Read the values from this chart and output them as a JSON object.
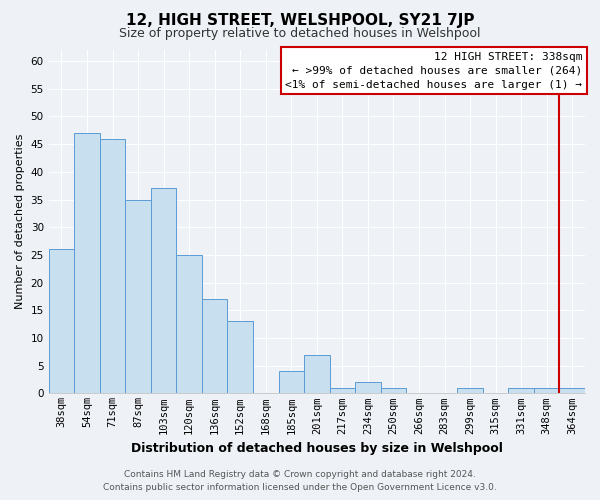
{
  "title": "12, HIGH STREET, WELSHPOOL, SY21 7JP",
  "subtitle": "Size of property relative to detached houses in Welshpool",
  "xlabel": "Distribution of detached houses by size in Welshpool",
  "ylabel": "Number of detached properties",
  "bar_labels": [
    "38sqm",
    "54sqm",
    "71sqm",
    "87sqm",
    "103sqm",
    "120sqm",
    "136sqm",
    "152sqm",
    "168sqm",
    "185sqm",
    "201sqm",
    "217sqm",
    "234sqm",
    "250sqm",
    "266sqm",
    "283sqm",
    "299sqm",
    "315sqm",
    "331sqm",
    "348sqm",
    "364sqm"
  ],
  "bar_values": [
    26,
    47,
    46,
    35,
    37,
    25,
    17,
    13,
    0,
    4,
    7,
    1,
    2,
    1,
    0,
    0,
    1,
    0,
    1,
    1,
    1
  ],
  "bar_color": "#c8dff0",
  "bar_edge_color": "#5b9bd5",
  "vline_x_index": 19,
  "vline_color": "#cc0000",
  "legend_title": "12 HIGH STREET: 338sqm",
  "legend_line1": "← >99% of detached houses are smaller (264)",
  "legend_line2": "<1% of semi-detached houses are larger (1) →",
  "ylim": [
    0,
    62
  ],
  "yticks": [
    0,
    5,
    10,
    15,
    20,
    25,
    30,
    35,
    40,
    45,
    50,
    55,
    60
  ],
  "footer_line1": "Contains HM Land Registry data © Crown copyright and database right 2024.",
  "footer_line2": "Contains public sector information licensed under the Open Government Licence v3.0.",
  "bg_color": "#eef2f7",
  "axes_bg_color": "#eef2f7",
  "grid_color": "#ffffff",
  "title_fontsize": 11,
  "subtitle_fontsize": 9,
  "xlabel_fontsize": 9,
  "ylabel_fontsize": 8,
  "tick_fontsize": 7.5,
  "legend_fontsize": 8,
  "footer_fontsize": 6.5
}
